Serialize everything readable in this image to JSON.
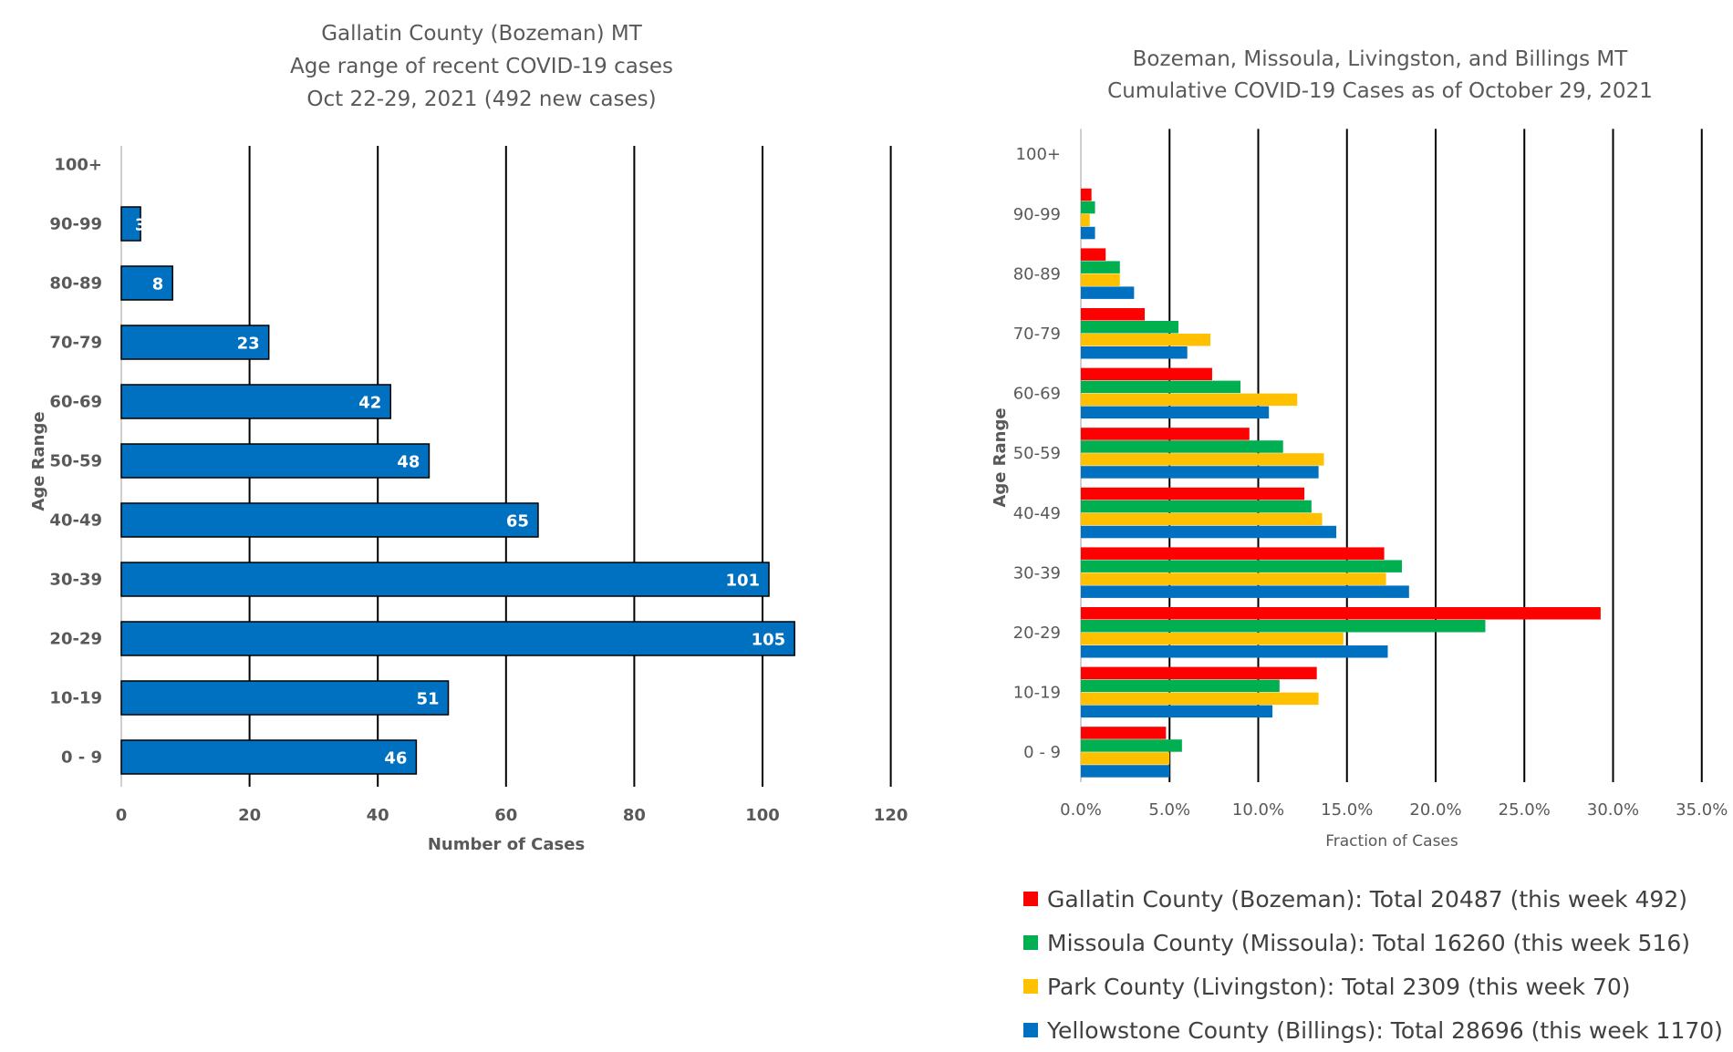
{
  "chart_data": [
    {
      "type": "bar",
      "orientation": "horizontal",
      "title": [
        "Gallatin County (Bozeman) MT",
        "Age range of recent COVID-19 cases",
        "Oct 22-29, 2021 (492 new cases)"
      ],
      "xlabel": "Number of Cases",
      "ylabel": "Age Range",
      "categories": [
        "0 - 9",
        "10-19",
        "20-29",
        "30-39",
        "40-49",
        "50-59",
        "60-69",
        "70-79",
        "80-89",
        "90-99",
        "100+"
      ],
      "values": [
        46,
        51,
        105,
        101,
        65,
        48,
        42,
        23,
        8,
        3,
        null
      ],
      "data_labels": [
        "46",
        "51",
        "105",
        "101",
        "65",
        "48",
        "42",
        "23",
        "8",
        "3",
        ""
      ],
      "xlim": [
        0,
        120
      ],
      "xticks": [
        "0",
        "20",
        "40",
        "60",
        "80",
        "100",
        "120"
      ],
      "grid": "vertical",
      "bar_color": "#0070C0"
    },
    {
      "type": "bar",
      "orientation": "horizontal",
      "title": [
        "Bozeman, Missoula, Livingston, and Billings MT",
        "Cumulative COVID-19 Cases as of October 29, 2021"
      ],
      "xlabel": "Fraction of Cases",
      "ylabel": "Age Range",
      "categories": [
        "0 - 9",
        "10-19",
        "20-29",
        "30-39",
        "40-49",
        "50-59",
        "60-69",
        "70-79",
        "80-89",
        "90-99",
        "100+"
      ],
      "xlim": [
        0,
        35
      ],
      "xticks": [
        "0.0%",
        "5.0%",
        "10.0%",
        "15.0%",
        "20.0%",
        "25.0%",
        "30.0%",
        "35.0%"
      ],
      "grid": "vertical",
      "legend_position": "bottom",
      "series": [
        {
          "name": "Gallatin County (Bozeman): Total 20487 (this week 492)",
          "color": "#FF0000",
          "values": [
            4.8,
            13.3,
            29.3,
            17.1,
            12.6,
            9.5,
            7.4,
            3.6,
            1.4,
            0.6,
            0.0
          ]
        },
        {
          "name": "Missoula County (Missoula): Total 16260 (this week 516)",
          "color": "#00B050",
          "values": [
            5.7,
            11.2,
            22.8,
            18.1,
            13.0,
            11.4,
            9.0,
            5.5,
            2.2,
            0.8,
            0.0
          ]
        },
        {
          "name": "Park County (Livingston): Total 2309 (this week 70)",
          "color": "#FFC000",
          "values": [
            5.0,
            13.4,
            14.8,
            17.2,
            13.6,
            13.7,
            12.2,
            7.3,
            2.2,
            0.5,
            0.0
          ]
        },
        {
          "name": "Yellowstone County (Billings): Total 28696 (this week 1170)",
          "color": "#0070C0",
          "values": [
            5.0,
            10.8,
            17.3,
            18.5,
            14.4,
            13.4,
            10.6,
            6.0,
            3.0,
            0.8,
            0.0
          ]
        }
      ]
    }
  ]
}
